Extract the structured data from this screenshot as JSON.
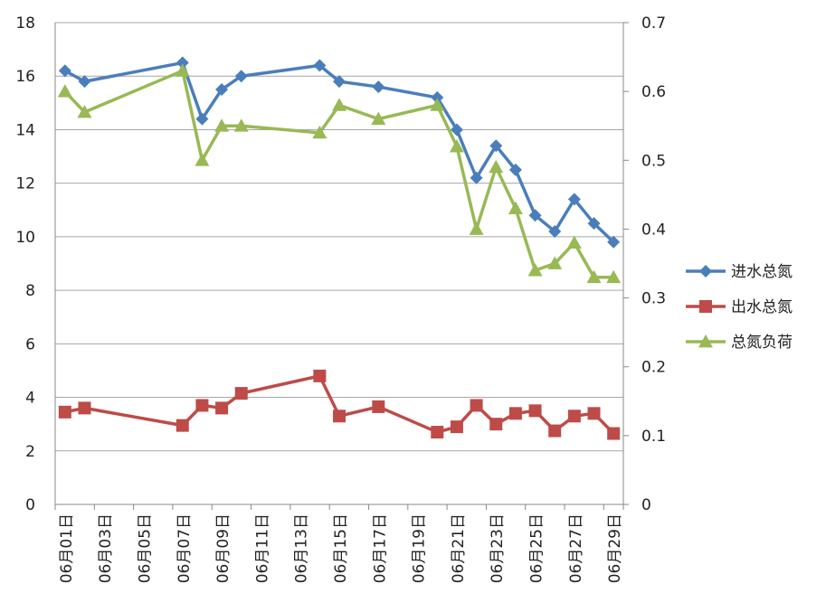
{
  "chart_data": {
    "type": "line",
    "title": "",
    "x": [
      "06月01日",
      "06月02日",
      "06月07日",
      "06月08日",
      "06月09日",
      "06月10日",
      "06月14日",
      "06月15日",
      "06月17日",
      "06月20日",
      "06月21日",
      "06月22日",
      "06月23日",
      "06月24日",
      "06月25日",
      "06月26日",
      "06月27日",
      "06月28日",
      "06月29日"
    ],
    "x_tick_labels": [
      "06月01日",
      "06月03日",
      "06月05日",
      "06月07日",
      "06月09日",
      "06月11日",
      "06月13日",
      "06月15日",
      "06月17日",
      "06月19日",
      "06月21日",
      "06月23日",
      "06月25日",
      "06月27日",
      "06月29日"
    ],
    "y_left": {
      "ylim": [
        0,
        18
      ],
      "ticks": [
        "0",
        "2",
        "4",
        "6",
        "8",
        "10",
        "12",
        "14",
        "16",
        "18"
      ]
    },
    "y_right": {
      "ylim": [
        0,
        0.7
      ],
      "ticks": [
        "0",
        "0.1",
        "0.2",
        "0.3",
        "0.4",
        "0.5",
        "0.6",
        "0.7"
      ]
    },
    "grid": true,
    "legend_position": "right",
    "series": [
      {
        "name": "进水总氮",
        "axis": "left",
        "color": "#4a7ebb",
        "marker": "diamond",
        "days": [
          1,
          2,
          7,
          8,
          9,
          10,
          14,
          15,
          17,
          20,
          21,
          22,
          23,
          24,
          25,
          26,
          27,
          28,
          29
        ],
        "values": [
          16.2,
          15.8,
          16.5,
          14.4,
          15.5,
          16.0,
          16.4,
          15.8,
          15.6,
          15.2,
          14.0,
          12.2,
          13.4,
          12.5,
          10.8,
          10.2,
          11.4,
          10.5,
          9.8
        ]
      },
      {
        "name": "出水总氮",
        "axis": "left",
        "color": "#be4b48",
        "marker": "square",
        "days": [
          1,
          2,
          7,
          8,
          9,
          10,
          14,
          15,
          17,
          20,
          21,
          22,
          23,
          24,
          25,
          26,
          27,
          28,
          29
        ],
        "values": [
          3.45,
          3.6,
          2.95,
          3.7,
          3.6,
          4.15,
          4.8,
          3.3,
          3.65,
          2.7,
          2.9,
          3.7,
          3.0,
          3.4,
          3.5,
          2.75,
          3.3,
          3.4,
          2.65
        ]
      },
      {
        "name": "总氮负荷",
        "axis": "right",
        "color": "#98b954",
        "marker": "triangle",
        "days": [
          1,
          2,
          7,
          8,
          9,
          10,
          14,
          15,
          17,
          20,
          21,
          22,
          23,
          24,
          25,
          26,
          27,
          28,
          29
        ],
        "values": [
          0.6,
          0.57,
          0.63,
          0.5,
          0.55,
          0.55,
          0.54,
          0.58,
          0.56,
          0.58,
          0.52,
          0.4,
          0.49,
          0.43,
          0.34,
          0.35,
          0.38,
          0.33,
          0.33
        ]
      }
    ]
  },
  "legend": {
    "items": [
      "进水总氮",
      "出水总氮",
      "总氮负荷"
    ]
  }
}
